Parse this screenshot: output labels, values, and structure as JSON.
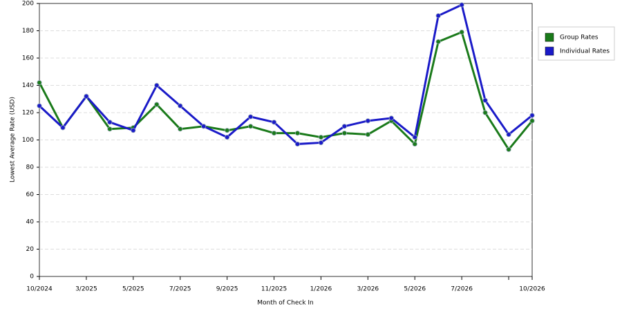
{
  "chart_data": {
    "type": "line",
    "x_label": "Month of Check In",
    "y_label": "Lowest Average Rate (USD)",
    "categories": [
      "10/2024",
      null,
      "3/2025",
      null,
      "5/2025",
      null,
      "7/2025",
      null,
      "9/2025",
      null,
      "11/2025",
      null,
      "1/2026",
      null,
      "3/2026",
      null,
      "5/2026",
      null,
      "7/2026",
      null,
      null,
      "10/2026"
    ],
    "series": [
      {
        "name": "Group Rates",
        "color": "#1a7a1a",
        "values": [
          142,
          109,
          132,
          108,
          109,
          126,
          108,
          110,
          107,
          110,
          105,
          105,
          102,
          105,
          104,
          114,
          97,
          172,
          179,
          120,
          93,
          114
        ]
      },
      {
        "name": "Individual Rates",
        "color": "#1a1ac8",
        "values": [
          125,
          109,
          132,
          113,
          107,
          140,
          125,
          110,
          102,
          117,
          113,
          97,
          98,
          110,
          114,
          116,
          102,
          191,
          199,
          129,
          104,
          118
        ]
      }
    ],
    "ylim": [
      0,
      200
    ],
    "yticks": [
      0,
      20,
      40,
      60,
      80,
      100,
      120,
      140,
      160,
      180,
      200
    ],
    "grid": true,
    "legend": "right"
  }
}
